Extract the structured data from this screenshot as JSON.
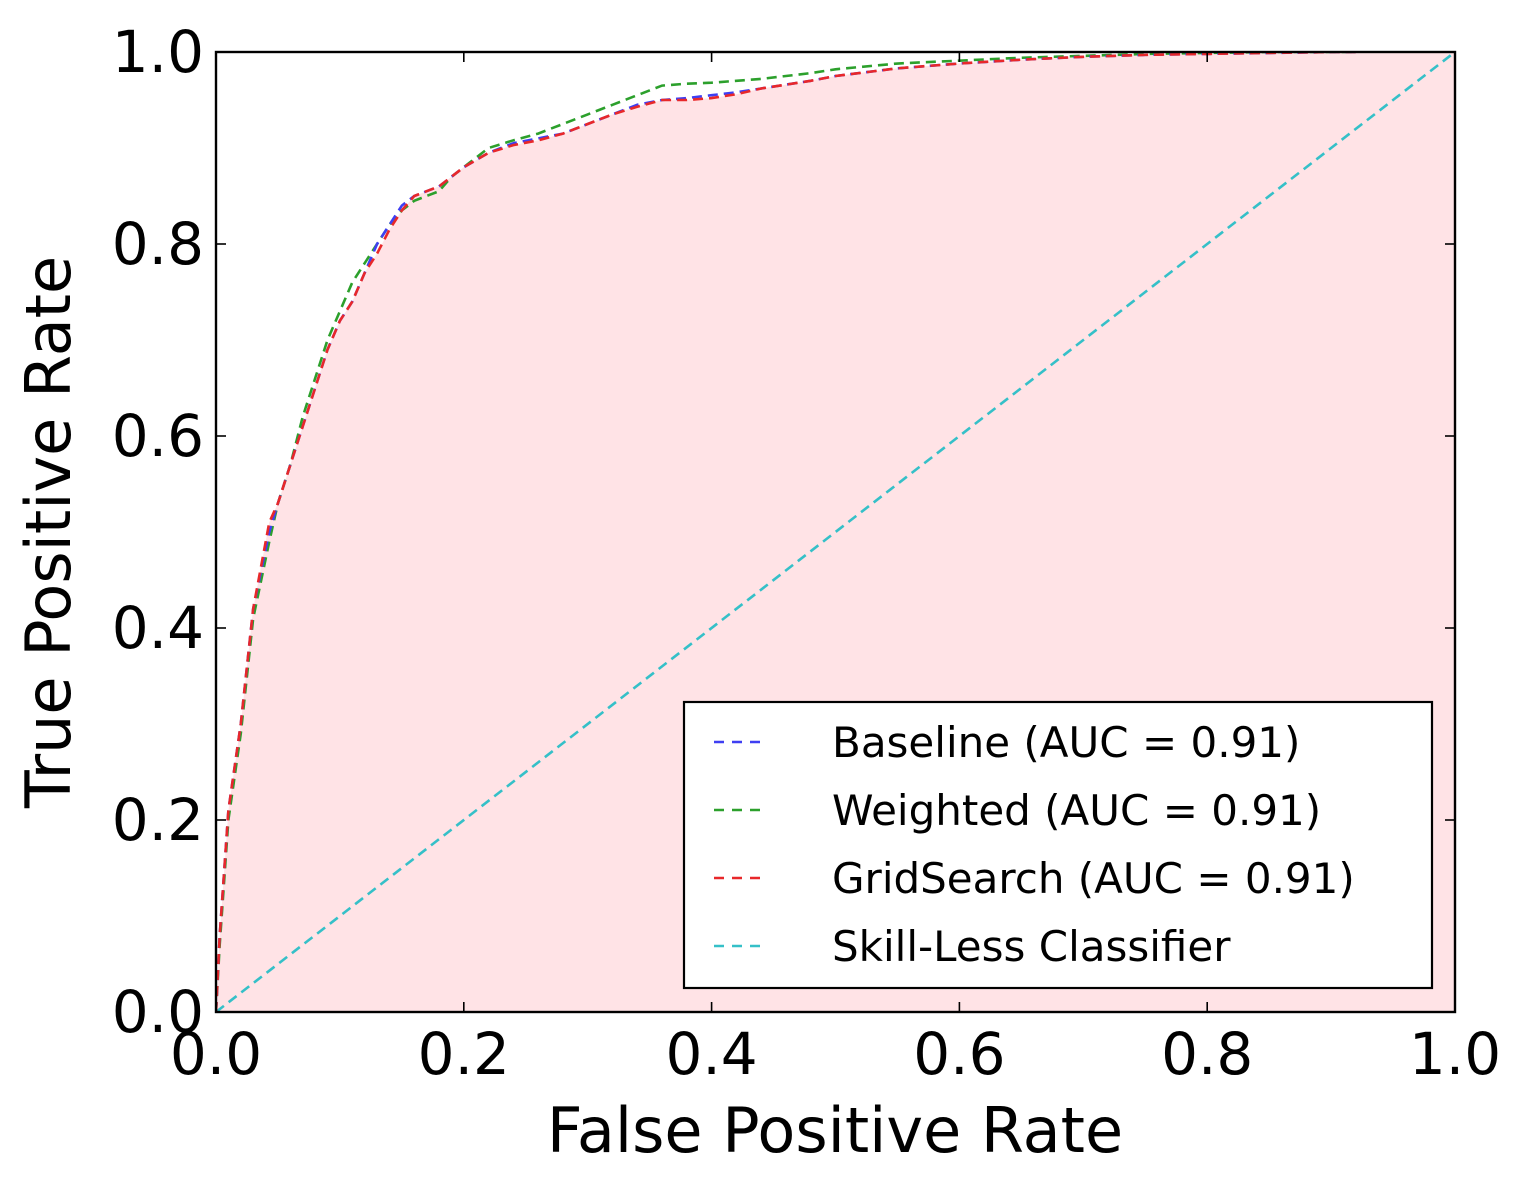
{
  "chart_data": {
    "type": "line",
    "xlabel": "False Positive Rate",
    "ylabel": "True Positive Rate",
    "xlim": [
      0.0,
      1.0
    ],
    "ylim": [
      0.0,
      1.0
    ],
    "grid": false,
    "legend_position": "bottom-right",
    "shade_under": "GridSearch (AUC = 0.91)",
    "shade_color": "#ffe3e6",
    "x_ticks": [
      "0.0",
      "0.2",
      "0.4",
      "0.6",
      "0.8",
      "1.0"
    ],
    "y_ticks": [
      "0.0",
      "0.2",
      "0.4",
      "0.6",
      "0.8",
      "1.0"
    ],
    "series": [
      {
        "name": "Baseline (AUC = 0.91)",
        "color": "#3f3ff2",
        "dashed": true,
        "x": [
          0.0,
          0.003,
          0.01,
          0.02,
          0.03,
          0.043,
          0.05,
          0.06,
          0.07,
          0.08,
          0.09,
          0.1,
          0.11,
          0.12,
          0.13,
          0.14,
          0.15,
          0.16,
          0.17,
          0.18,
          0.19,
          0.2,
          0.22,
          0.24,
          0.26,
          0.28,
          0.3,
          0.32,
          0.34,
          0.36,
          0.38,
          0.4,
          0.42,
          0.44,
          0.46,
          0.48,
          0.5,
          0.55,
          0.6,
          0.65,
          0.7,
          0.75,
          0.8,
          0.85,
          0.9,
          0.92
        ],
        "y": [
          0.0,
          0.08,
          0.21,
          0.3,
          0.42,
          0.5,
          0.53,
          0.57,
          0.61,
          0.65,
          0.69,
          0.72,
          0.74,
          0.77,
          0.8,
          0.82,
          0.84,
          0.85,
          0.855,
          0.86,
          0.87,
          0.88,
          0.895,
          0.905,
          0.91,
          0.915,
          0.925,
          0.935,
          0.945,
          0.95,
          0.952,
          0.955,
          0.958,
          0.962,
          0.966,
          0.97,
          0.975,
          0.983,
          0.988,
          0.992,
          0.995,
          0.997,
          0.998,
          0.999,
          1.0,
          1.0
        ]
      },
      {
        "name": "Weighted (AUC = 0.91)",
        "color": "#2ca02c",
        "dashed": true,
        "x": [
          0.0,
          0.003,
          0.01,
          0.02,
          0.03,
          0.043,
          0.05,
          0.06,
          0.07,
          0.08,
          0.09,
          0.1,
          0.11,
          0.12,
          0.13,
          0.14,
          0.15,
          0.16,
          0.17,
          0.18,
          0.19,
          0.2,
          0.22,
          0.24,
          0.26,
          0.28,
          0.3,
          0.32,
          0.34,
          0.36,
          0.38,
          0.4,
          0.42,
          0.44,
          0.46,
          0.48,
          0.5,
          0.55,
          0.6,
          0.65,
          0.7,
          0.75,
          0.8,
          0.85,
          0.9,
          0.92
        ],
        "y": [
          0.0,
          0.07,
          0.2,
          0.29,
          0.41,
          0.49,
          0.53,
          0.57,
          0.62,
          0.66,
          0.7,
          0.73,
          0.76,
          0.78,
          0.8,
          0.82,
          0.835,
          0.845,
          0.85,
          0.855,
          0.87,
          0.88,
          0.9,
          0.908,
          0.915,
          0.925,
          0.935,
          0.945,
          0.955,
          0.965,
          0.967,
          0.968,
          0.97,
          0.972,
          0.975,
          0.978,
          0.982,
          0.988,
          0.991,
          0.994,
          0.996,
          0.998,
          0.999,
          1.0,
          1.0,
          1.0
        ]
      },
      {
        "name": "GridSearch (AUC = 0.91)",
        "color": "#e8282a",
        "dashed": true,
        "x": [
          0.0,
          0.003,
          0.01,
          0.02,
          0.03,
          0.043,
          0.05,
          0.06,
          0.07,
          0.08,
          0.09,
          0.1,
          0.11,
          0.12,
          0.13,
          0.14,
          0.15,
          0.16,
          0.17,
          0.18,
          0.19,
          0.2,
          0.22,
          0.24,
          0.26,
          0.28,
          0.3,
          0.32,
          0.34,
          0.36,
          0.38,
          0.4,
          0.42,
          0.44,
          0.46,
          0.48,
          0.5,
          0.55,
          0.6,
          0.65,
          0.7,
          0.75,
          0.8,
          0.85,
          0.9,
          0.92
        ],
        "y": [
          0.0,
          0.08,
          0.21,
          0.3,
          0.42,
          0.51,
          0.53,
          0.57,
          0.61,
          0.65,
          0.69,
          0.72,
          0.74,
          0.77,
          0.79,
          0.815,
          0.835,
          0.85,
          0.855,
          0.86,
          0.87,
          0.88,
          0.895,
          0.903,
          0.908,
          0.915,
          0.925,
          0.935,
          0.943,
          0.95,
          0.95,
          0.952,
          0.956,
          0.962,
          0.966,
          0.97,
          0.975,
          0.983,
          0.988,
          0.992,
          0.995,
          0.997,
          0.998,
          0.999,
          1.0,
          1.0
        ]
      },
      {
        "name": "Skill-Less Classifier",
        "color": "#35c0c8",
        "dashed": true,
        "x": [
          0.0,
          1.0
        ],
        "y": [
          0.0,
          1.0
        ]
      }
    ]
  }
}
